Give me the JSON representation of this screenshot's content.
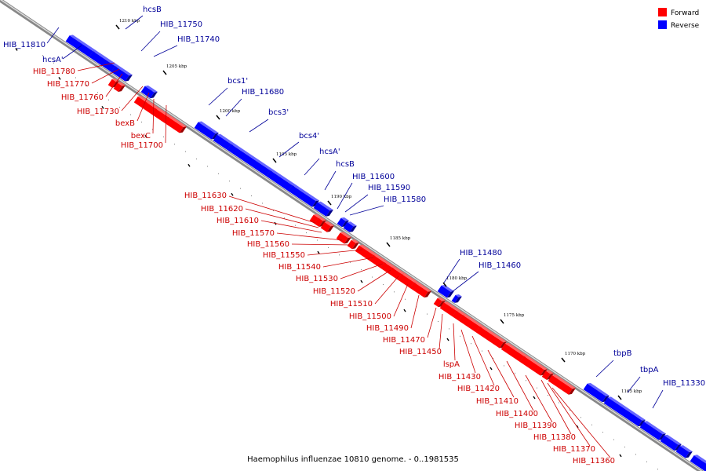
{
  "caption": "Haemophilus influenzae 10810 genome. - 0..1981535",
  "legend": [
    {
      "label": "Forward",
      "color": "#ff0000"
    },
    {
      "label": "Reverse",
      "color": "#0000ff"
    }
  ],
  "colors": {
    "forward": "#ff0000",
    "reverse": "#0000ff",
    "forward_label": "#cc0000",
    "reverse_label": "#000099"
  },
  "scale_labels": [
    "1210 kbp",
    "1205 kbp",
    "1200 kbp",
    "1195 kbp",
    "1190 kbp",
    "1185 kbp",
    "1180 kbp",
    "1175 kbp",
    "1170 kbp",
    "1165 kbp"
  ],
  "reverse_labels": [
    "hcsB",
    "HIB_11810",
    "HIB_11750",
    "HIB_11740",
    "hcsA'",
    "bcs1'",
    "HIB_11680",
    "bcs3'",
    "bcs4'",
    "hcsA'",
    "hcsB",
    "HIB_11600",
    "HIB_11590",
    "HIB_11580",
    "HIB_11480",
    "HIB_11460",
    "tbpB",
    "tbpA",
    "HIB_11330"
  ],
  "forward_labels": [
    "HIB_11780",
    "HIB_11770",
    "HIB_11760",
    "HIB_11730",
    "bexB",
    "bexC",
    "HIB_11700",
    "HIB_11630",
    "HIB_11620",
    "HIB_11610",
    "HIB_11570",
    "HIB_11560",
    "HIB_11550",
    "HIB_11540",
    "HIB_11530",
    "HIB_11520",
    "HIB_11510",
    "HIB_11500",
    "HIB_11490",
    "HIB_11470",
    "HIB_11450",
    "lspA",
    "HIB_11430",
    "HIB_11420",
    "HIB_11410",
    "HIB_11400",
    "HIB_11390",
    "HIB_11380",
    "HIB_11370",
    "HIB_11360"
  ]
}
